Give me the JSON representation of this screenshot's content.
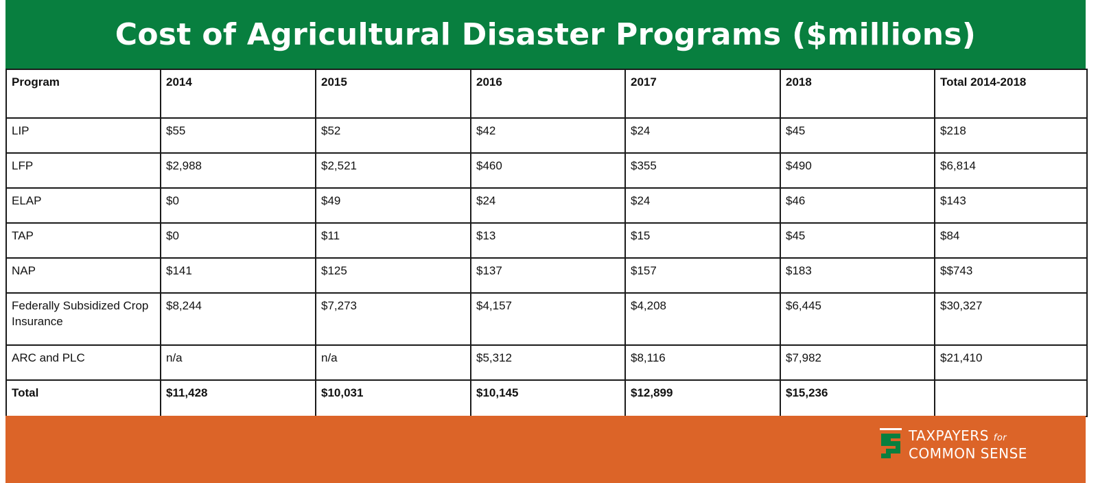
{
  "title": "Cost of Agricultural Disaster Programs ($millions)",
  "table": {
    "headers": [
      "Program",
      "2014",
      "2015",
      "2016",
      "2017",
      "2018",
      "Total 2014-2018"
    ],
    "rows": [
      [
        "LIP",
        "$55",
        "$52",
        "$42",
        "$24",
        "$45",
        "$218"
      ],
      [
        "LFP",
        "$2,988",
        "$2,521",
        "$460",
        "$355",
        "$490",
        "$6,814"
      ],
      [
        "ELAP",
        "$0",
        "$49",
        "$24",
        "$24",
        "$46",
        "$143"
      ],
      [
        "TAP",
        "$0",
        "$11",
        "$13",
        "$15",
        "$45",
        "$84"
      ],
      [
        "NAP",
        "$141",
        "$125",
        "$137",
        "$157",
        "$183",
        "$$743"
      ],
      [
        "Federally Subsidized Crop Insurance",
        "$8,244",
        "$7,273",
        "$4,157",
        "$4,208",
        "$6,445",
        "$30,327"
      ],
      [
        "ARC and PLC",
        "n/a",
        "n/a",
        "$5,312",
        "$8,116",
        "$7,982",
        "$21,410"
      ]
    ],
    "total": [
      "Total",
      "$11,428",
      "$10,031",
      "$10,145",
      "$12,899",
      "$15,236",
      ""
    ]
  },
  "logo": {
    "line1": "TAXPAYERS",
    "for": "for",
    "line2": "COMMON SENSE"
  },
  "colors": {
    "green": "#087f3f",
    "orange": "#dc6428"
  }
}
